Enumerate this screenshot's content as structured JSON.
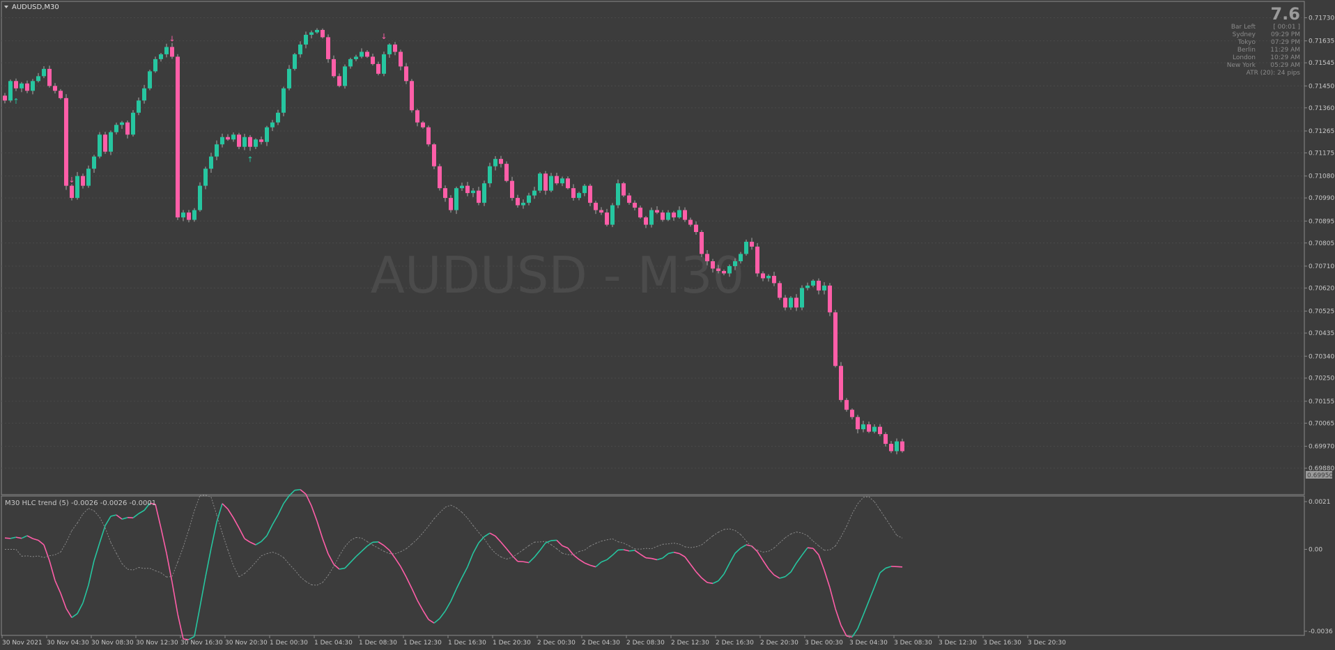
{
  "window": {
    "symbol_title": "AUDUSD,M30",
    "watermark": "AUDUSD - M30"
  },
  "info_panel": {
    "big_value": "7.6",
    "rows": [
      {
        "label": "Bar Left",
        "value": "[ 00:01 ]"
      },
      {
        "label": "Sydney",
        "value": "09:29 PM"
      },
      {
        "label": "Tokyo",
        "value": "07:29 PM"
      },
      {
        "label": "Berlin",
        "value": "11:29 AM"
      },
      {
        "label": "London",
        "value": "10:29 AM"
      },
      {
        "label": "New York",
        "value": "05:29 AM"
      }
    ],
    "atr_text": "ATR (20): 24 pips"
  },
  "indicator": {
    "label": "M30  HLC trend (5) -0.0026 -0.0026 -0.0001",
    "y_ticks": [
      "0.0021",
      "0.00",
      "-0.0036"
    ],
    "ylim": [
      -0.0036,
      0.0021
    ]
  },
  "colors": {
    "background": "#3c3c3c",
    "bull": "#26c6a0",
    "bear": "#ff5ea8",
    "grid": "#4a4a4a",
    "axis_text": "#c8c8c8",
    "current_price_box": "#9a9a9a"
  },
  "current_price": "0.69950",
  "chart_data": {
    "type": "candlestick",
    "title": "AUDUSD,M30",
    "ylim": [
      0.698,
      0.7178
    ],
    "y_ticks": [
      "0.71730",
      "0.71635",
      "0.71545",
      "0.71450",
      "0.71360",
      "0.71265",
      "0.71175",
      "0.71080",
      "0.70990",
      "0.70895",
      "0.70805",
      "0.70710",
      "0.70620",
      "0.70525",
      "0.70435",
      "0.70340",
      "0.70250",
      "0.70155",
      "0.70065",
      "0.69970",
      "0.69880"
    ],
    "x_ticks": [
      "30 Nov 2021",
      "30 Nov 04:30",
      "30 Nov 08:30",
      "30 Nov 12:30",
      "30 Nov 16:30",
      "30 Nov 20:30",
      "1 Dec 00:30",
      "1 Dec 04:30",
      "1 Dec 08:30",
      "1 Dec 12:30",
      "1 Dec 16:30",
      "1 Dec 20:30",
      "2 Dec 00:30",
      "2 Dec 04:30",
      "2 Dec 08:30",
      "2 Dec 12:30",
      "2 Dec 16:30",
      "2 Dec 20:30",
      "3 Dec 00:30",
      "3 Dec 04:30",
      "3 Dec 08:30",
      "3 Dec 12:30",
      "3 Dec 16:30",
      "3 Dec 20:30"
    ],
    "closes": [
      0.7139,
      0.7147,
      0.7144,
      0.7146,
      0.7143,
      0.7147,
      0.7149,
      0.7152,
      0.7145,
      0.7143,
      0.714,
      0.7104,
      0.7099,
      0.7108,
      0.7104,
      0.7111,
      0.7116,
      0.7125,
      0.7118,
      0.7126,
      0.7129,
      0.713,
      0.7125,
      0.7134,
      0.7139,
      0.7144,
      0.7151,
      0.7156,
      0.7158,
      0.7161,
      0.7157,
      0.7091,
      0.7093,
      0.709,
      0.7094,
      0.7104,
      0.7111,
      0.7116,
      0.7121,
      0.7124,
      0.7123,
      0.7125,
      0.712,
      0.7124,
      0.712,
      0.7123,
      0.7122,
      0.7128,
      0.713,
      0.7134,
      0.7144,
      0.7152,
      0.7158,
      0.7162,
      0.7166,
      0.7167,
      0.7168,
      0.7165,
      0.7156,
      0.7149,
      0.7145,
      0.7153,
      0.7156,
      0.7157,
      0.7159,
      0.7157,
      0.7154,
      0.715,
      0.7158,
      0.7162,
      0.7159,
      0.7153,
      0.7147,
      0.7135,
      0.713,
      0.7128,
      0.7121,
      0.7112,
      0.7103,
      0.7099,
      0.7094,
      0.7103,
      0.7104,
      0.7101,
      0.7102,
      0.7097,
      0.7105,
      0.7112,
      0.7115,
      0.7113,
      0.7106,
      0.7099,
      0.7096,
      0.7097,
      0.71,
      0.7102,
      0.7109,
      0.7102,
      0.7108,
      0.7105,
      0.7107,
      0.7103,
      0.7099,
      0.7101,
      0.7104,
      0.7097,
      0.7094,
      0.7093,
      0.7088,
      0.7096,
      0.7105,
      0.71,
      0.7097,
      0.7095,
      0.7091,
      0.7088,
      0.7094,
      0.7093,
      0.709,
      0.7093,
      0.7091,
      0.7094,
      0.709,
      0.7088,
      0.7085,
      0.7076,
      0.7073,
      0.707,
      0.7069,
      0.7068,
      0.7071,
      0.7073,
      0.7076,
      0.7081,
      0.7079,
      0.7068,
      0.7066,
      0.7067,
      0.7064,
      0.7058,
      0.7054,
      0.7058,
      0.7054,
      0.7062,
      0.7063,
      0.7065,
      0.7061,
      0.7063,
      0.7052,
      0.703,
      0.7016,
      0.7012,
      0.7009,
      0.7004,
      0.7006,
      0.7003,
      0.7005,
      0.7002,
      0.6998,
      0.6995,
      0.6999,
      0.6995
    ]
  }
}
